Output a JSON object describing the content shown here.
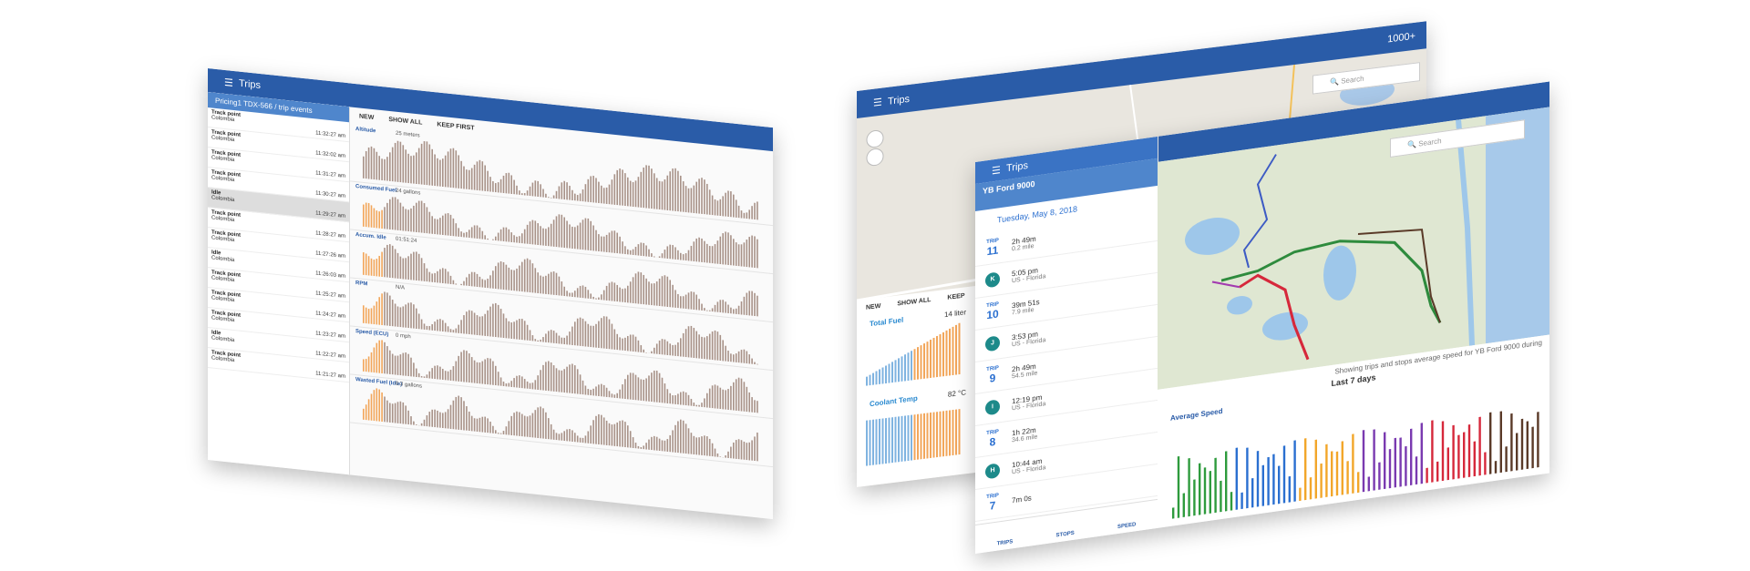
{
  "left_window": {
    "title": "Trips",
    "breadcrumb": "Pricing1 TDX-566 / trip events",
    "tabs": [
      "NEW",
      "SHOW ALL",
      "KEEP FIRST"
    ],
    "events": [
      {
        "label": "Track point",
        "place": "Colombia",
        "time": "11:32:27 am"
      },
      {
        "label": "Track point",
        "place": "Colombia",
        "time": "11:32:02 am"
      },
      {
        "label": "Track point",
        "place": "Colombia",
        "time": "11:31:27 am"
      },
      {
        "label": "Track point",
        "place": "Colombia",
        "time": "11:30:27 am"
      },
      {
        "label": "Idle",
        "place": "Colombia",
        "time": "11:29:27 am"
      },
      {
        "label": "Track point",
        "place": "Colombia",
        "time": "11:28:27 am"
      },
      {
        "label": "Track point",
        "place": "Colombia",
        "time": "11:27:26 am"
      },
      {
        "label": "Idle",
        "place": "Colombia",
        "time": "11:26:03 am"
      },
      {
        "label": "Track point",
        "place": "Colombia",
        "time": "11:25:27 am"
      },
      {
        "label": "Track point",
        "place": "Colombia",
        "time": "11:24:27 am"
      },
      {
        "label": "Track point",
        "place": "Colombia",
        "time": "11:23:27 am"
      },
      {
        "label": "Idle",
        "place": "Colombia",
        "time": "11:22:27 am"
      },
      {
        "label": "Track point",
        "place": "Colombia",
        "time": "11:21:27 am"
      }
    ],
    "charts": [
      {
        "name": "Altitude",
        "setting": "25 meters"
      },
      {
        "name": "Consumed Fuel",
        "setting": "24 gallons"
      },
      {
        "name": "Accum. Idle",
        "setting": "01:51:24"
      },
      {
        "name": "RPM",
        "setting": "N/A"
      },
      {
        "name": "Speed (ECU)",
        "setting": "0 mph"
      },
      {
        "name": "Wasted Fuel (Idle)",
        "setting": "0.3 gallons"
      }
    ]
  },
  "back_window": {
    "title": "Trips",
    "search": "Search",
    "count": "1000+",
    "tabs": [
      "NEW",
      "SHOW ALL",
      "KEEP"
    ],
    "gauges": [
      {
        "name": "Total Fuel",
        "value": "14 liter"
      },
      {
        "name": "Coolant Temp",
        "value": "82 °C"
      }
    ]
  },
  "front_window": {
    "title": "Trips",
    "vehicle": "YB Ford 9000",
    "date": "Tuesday, May 8, 2018",
    "search": "Search",
    "items": [
      {
        "label": "TRIP",
        "number": "11",
        "main": "2h 49m",
        "sub": "0.2 mile"
      },
      {
        "label": "K",
        "number": "",
        "main": "5:05 pm",
        "sub": "US - Florida"
      },
      {
        "label": "TRIP",
        "number": "10",
        "main": "39m 51s",
        "sub": "7.9 mile"
      },
      {
        "label": "J",
        "number": "",
        "main": "3:53 pm",
        "sub": "US - Florida"
      },
      {
        "label": "TRIP",
        "number": "9",
        "main": "2h 49m",
        "sub": "54.5 mile"
      },
      {
        "label": "I",
        "number": "",
        "main": "12:19 pm",
        "sub": "US - Florida"
      },
      {
        "label": "TRIP",
        "number": "8",
        "main": "1h 22m",
        "sub": "34.6 mile"
      },
      {
        "label": "H",
        "number": "",
        "main": "10:44 am",
        "sub": "US - Florida"
      },
      {
        "label": "TRIP",
        "number": "7",
        "main": "7m 0s",
        "sub": ""
      }
    ],
    "chart_title": "Average Speed",
    "chart_subtitle": "Last 7 days",
    "chart_note": "Showing trips and stops average speed for YB Ford 9000 during",
    "nav": [
      "TRIPS",
      "STOPS",
      "SPEED"
    ]
  }
}
